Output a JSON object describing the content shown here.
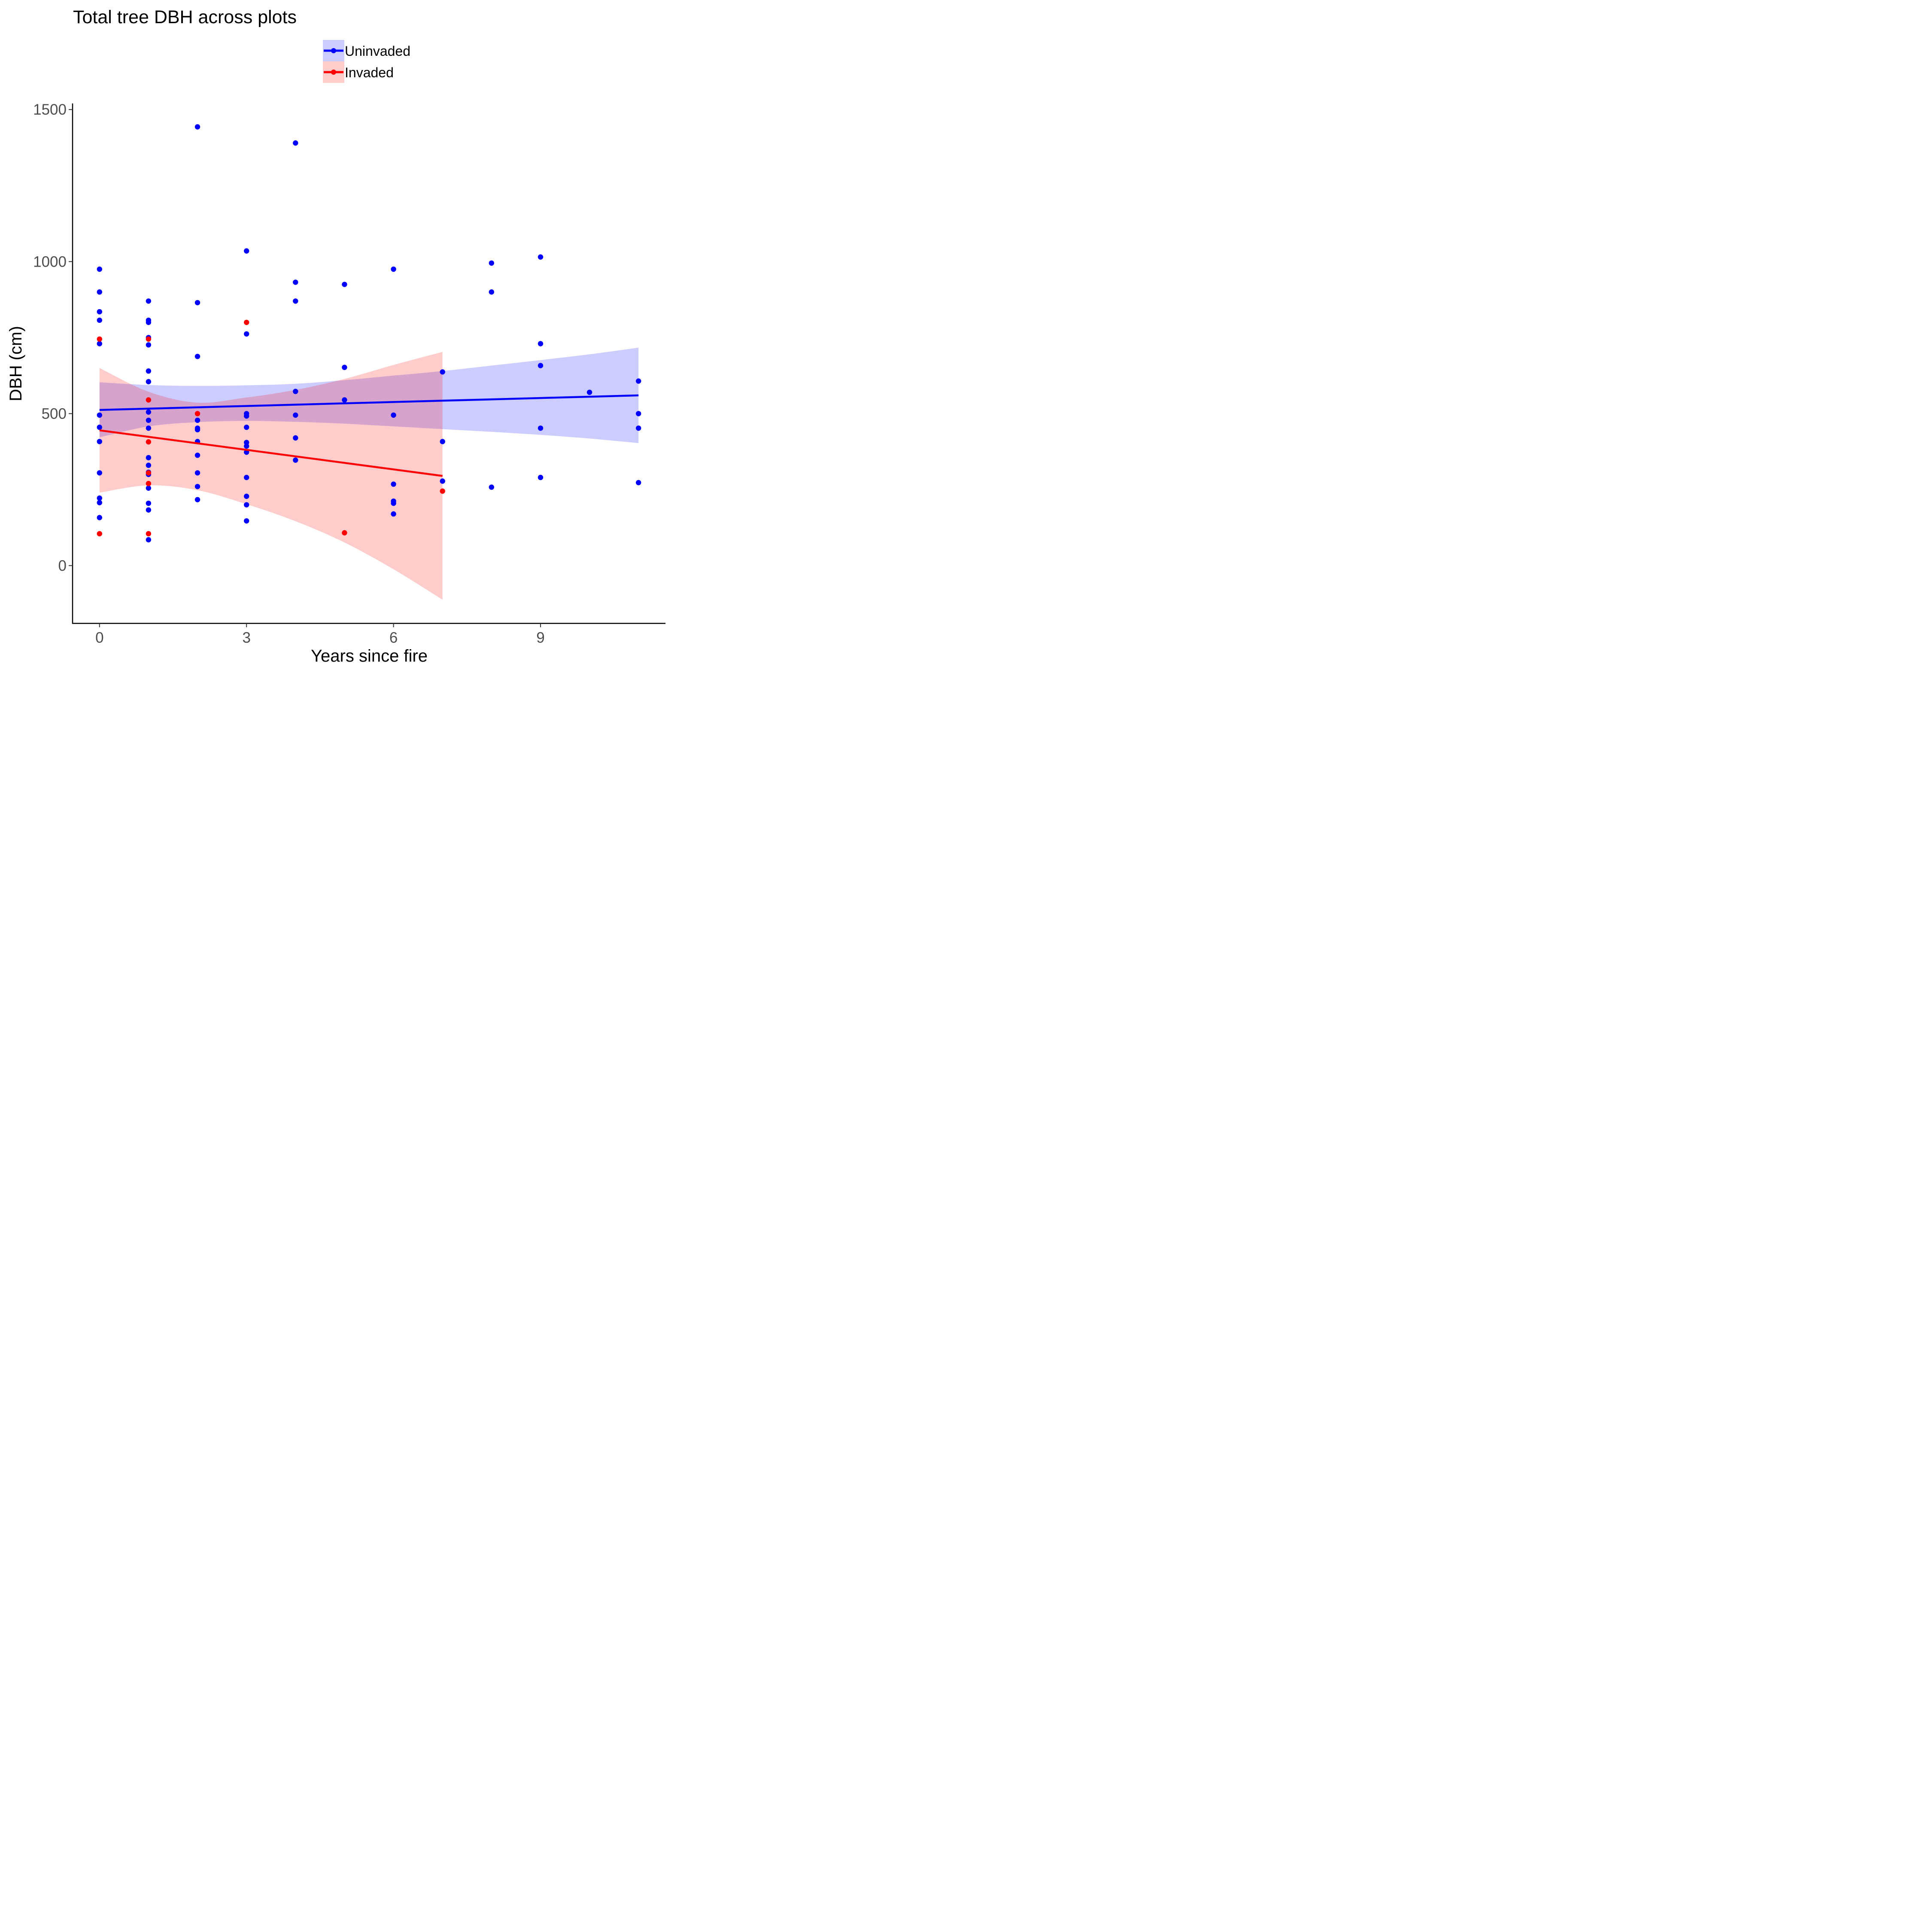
{
  "chart_data": {
    "type": "scatter",
    "title": "Total tree DBH across plots",
    "xlabel": "Years since fire",
    "ylabel": "DBH (cm)",
    "xlim": [
      -0.55,
      11.55
    ],
    "ylim": [
      -190,
      1520
    ],
    "xticks": [
      0,
      3,
      6,
      9
    ],
    "yticks": [
      0,
      500,
      1000,
      1500
    ],
    "grid": false,
    "legend_position": "top",
    "series": [
      {
        "name": "Uninvaded",
        "color": "#0000ff",
        "ribbon_color": "#0000ff",
        "points": [
          [
            0,
            975
          ],
          [
            0,
            900
          ],
          [
            0,
            835
          ],
          [
            0,
            807
          ],
          [
            0,
            730
          ],
          [
            0,
            495
          ],
          [
            0,
            455
          ],
          [
            0,
            408
          ],
          [
            0,
            305
          ],
          [
            0,
            222
          ],
          [
            0,
            207
          ],
          [
            0,
            158
          ],
          [
            1,
            870
          ],
          [
            1,
            807
          ],
          [
            1,
            800
          ],
          [
            1,
            750
          ],
          [
            1,
            726
          ],
          [
            1,
            640
          ],
          [
            1,
            605
          ],
          [
            1,
            505
          ],
          [
            1,
            478
          ],
          [
            1,
            452
          ],
          [
            1,
            355
          ],
          [
            1,
            330
          ],
          [
            1,
            307
          ],
          [
            1,
            300
          ],
          [
            1,
            255
          ],
          [
            1,
            205
          ],
          [
            1,
            183
          ],
          [
            1,
            85
          ],
          [
            2,
            1443
          ],
          [
            2,
            865
          ],
          [
            2,
            688
          ],
          [
            2,
            478
          ],
          [
            2,
            452
          ],
          [
            2,
            447
          ],
          [
            2,
            408
          ],
          [
            2,
            363
          ],
          [
            2,
            305
          ],
          [
            2,
            260
          ],
          [
            2,
            217
          ],
          [
            3,
            1035
          ],
          [
            3,
            762
          ],
          [
            3,
            500
          ],
          [
            3,
            492
          ],
          [
            3,
            455
          ],
          [
            3,
            405
          ],
          [
            3,
            393
          ],
          [
            3,
            373
          ],
          [
            3,
            290
          ],
          [
            3,
            228
          ],
          [
            3,
            200
          ],
          [
            3,
            147
          ],
          [
            4,
            1390
          ],
          [
            4,
            932
          ],
          [
            4,
            870
          ],
          [
            4,
            573
          ],
          [
            4,
            495
          ],
          [
            4,
            420
          ],
          [
            4,
            347
          ],
          [
            5,
            925
          ],
          [
            5,
            652
          ],
          [
            5,
            545
          ],
          [
            6,
            975
          ],
          [
            6,
            495
          ],
          [
            6,
            268
          ],
          [
            6,
            212
          ],
          [
            6,
            205
          ],
          [
            6,
            170
          ],
          [
            7,
            637
          ],
          [
            7,
            408
          ],
          [
            7,
            278
          ],
          [
            8,
            995
          ],
          [
            8,
            900
          ],
          [
            8,
            258
          ],
          [
            9,
            1015
          ],
          [
            9,
            730
          ],
          [
            9,
            658
          ],
          [
            9,
            452
          ],
          [
            9,
            290
          ],
          [
            10,
            570
          ],
          [
            11,
            607
          ],
          [
            11,
            500
          ],
          [
            11,
            452
          ],
          [
            11,
            273
          ]
        ],
        "fit_line": [
          [
            0,
            512
          ],
          [
            11,
            560
          ]
        ],
        "ci_ribbon": {
          "x": [
            0,
            1,
            2,
            3,
            4,
            5,
            6,
            7,
            8,
            9,
            10,
            11
          ],
          "lower": [
            422,
            458,
            472,
            476,
            473,
            467,
            458,
            449,
            440,
            430,
            418,
            403
          ],
          "upper": [
            603,
            594,
            591,
            593,
            598,
            610,
            625,
            640,
            658,
            676,
            695,
            717
          ]
        }
      },
      {
        "name": "Invaded",
        "color": "#ff0000",
        "ribbon_color": "#ff0000",
        "points": [
          [
            0,
            745
          ],
          [
            0,
            105
          ],
          [
            1,
            745
          ],
          [
            1,
            545
          ],
          [
            1,
            407
          ],
          [
            1,
            305
          ],
          [
            1,
            270
          ],
          [
            1,
            105
          ],
          [
            2,
            500
          ],
          [
            3,
            800
          ],
          [
            5,
            108
          ],
          [
            7,
            245
          ]
        ],
        "fit_line": [
          [
            0,
            445
          ],
          [
            7,
            295
          ]
        ],
        "ci_ribbon": {
          "x": [
            0,
            1,
            2,
            3,
            4,
            5,
            6,
            7
          ],
          "lower": [
            240,
            264,
            248,
            202,
            146,
            76,
            -12,
            -112
          ],
          "upper": [
            650,
            572,
            536,
            553,
            578,
            614,
            660,
            703
          ]
        }
      }
    ]
  }
}
